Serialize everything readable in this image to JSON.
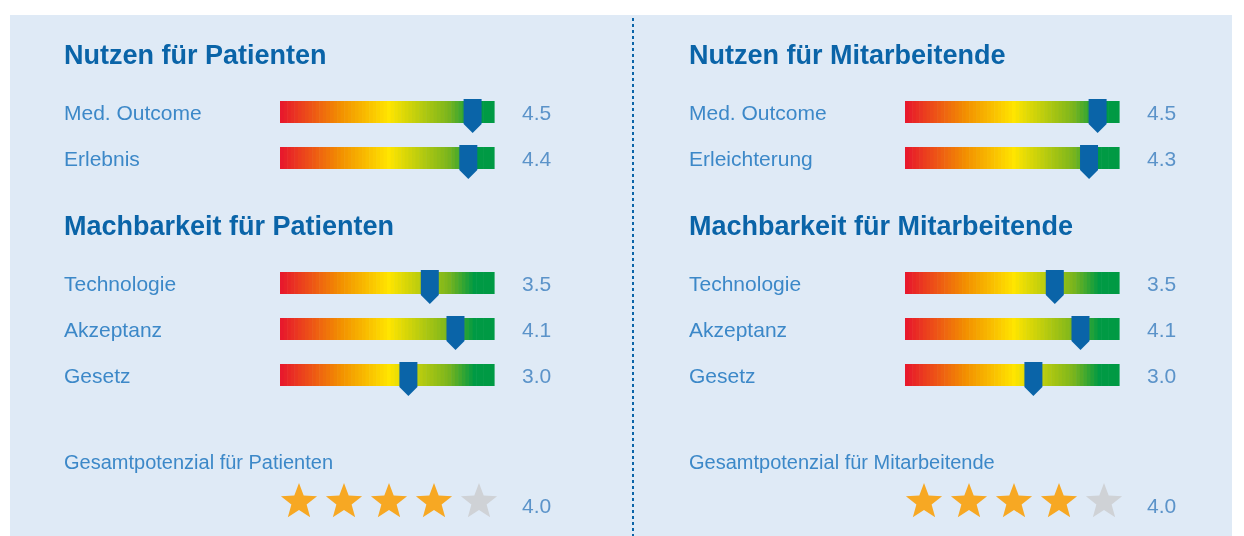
{
  "chart_data": [
    {
      "type": "other",
      "title": "Nutzen für Patienten",
      "categories": [
        "Med. Outcome",
        "Erlebnis"
      ],
      "values": [
        4.5,
        4.4
      ],
      "value_labels": [
        "4.5",
        "4.4"
      ]
    },
    {
      "type": "other",
      "title": "Machbarkeit für Patienten",
      "categories": [
        "Technologie",
        "Akzeptanz",
        "Gesetz"
      ],
      "values": [
        3.5,
        4.1,
        3.0
      ],
      "value_labels": [
        "3.5",
        "4.1",
        "3.0"
      ]
    },
    {
      "type": "other",
      "title": "Gesamtpotenzial für Patienten",
      "values": [
        4.0
      ],
      "value_labels": [
        "4.0"
      ]
    },
    {
      "type": "other",
      "title": "Nutzen für Mitarbeitende",
      "categories": [
        "Med. Outcome",
        "Erleichterung"
      ],
      "values": [
        4.5,
        4.3
      ],
      "value_labels": [
        "4.5",
        "4.3"
      ]
    },
    {
      "type": "other",
      "title": "Machbarkeit für Mitarbeitende",
      "categories": [
        "Technologie",
        "Akzeptanz",
        "Gesetz"
      ],
      "values": [
        3.5,
        4.1,
        3.0
      ],
      "value_labels": [
        "3.5",
        "4.1",
        "3.0"
      ]
    },
    {
      "type": "other",
      "title": "Gesamtpotenzial für Mitarbeitende",
      "values": [
        4.0
      ],
      "value_labels": [
        "4.0"
      ]
    }
  ]
}
